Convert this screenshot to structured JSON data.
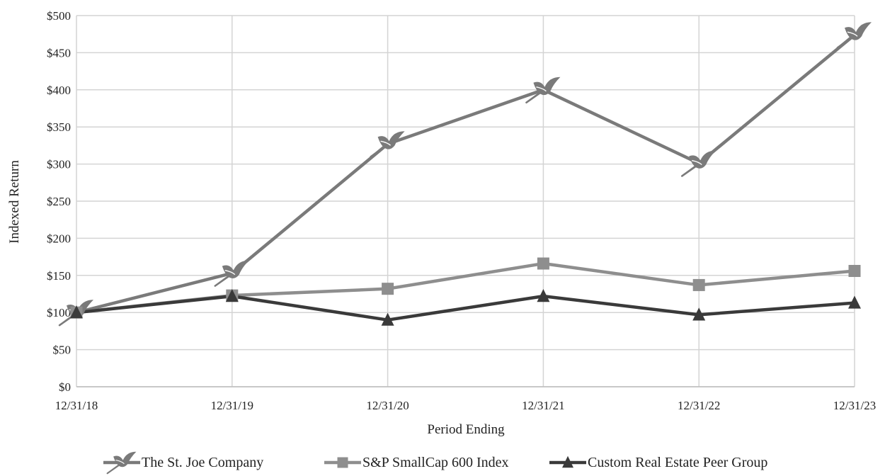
{
  "chart_data": {
    "type": "line",
    "title": "",
    "xlabel": "Period Ending",
    "ylabel": "Indexed Return",
    "categories": [
      "12/31/18",
      "12/31/19",
      "12/31/20",
      "12/31/21",
      "12/31/22",
      "12/31/23"
    ],
    "ylim": [
      0,
      500
    ],
    "ytick_labels": [
      "$0",
      "$50",
      "$100",
      "$150",
      "$200",
      "$250",
      "$300",
      "$350",
      "$400",
      "$450",
      "$500"
    ],
    "ytick_values": [
      0,
      50,
      100,
      150,
      200,
      250,
      300,
      350,
      400,
      450,
      500
    ],
    "grid": true,
    "legend_position": "bottom",
    "series": [
      {
        "name": "The St. Joe Company",
        "values": [
          100,
          153,
          327,
          400,
          301,
          474
        ],
        "color": "#7a7a7a",
        "marker": "bird-icon"
      },
      {
        "name": "S&P SmallCap 600 Index",
        "values": [
          100,
          123,
          132,
          166,
          137,
          156
        ],
        "color": "#8e8e8e",
        "marker": "square"
      },
      {
        "name": "Custom Real Estate Peer Group",
        "values": [
          100,
          122,
          90,
          122,
          97,
          113
        ],
        "color": "#3a3a3a",
        "marker": "triangle"
      }
    ]
  }
}
